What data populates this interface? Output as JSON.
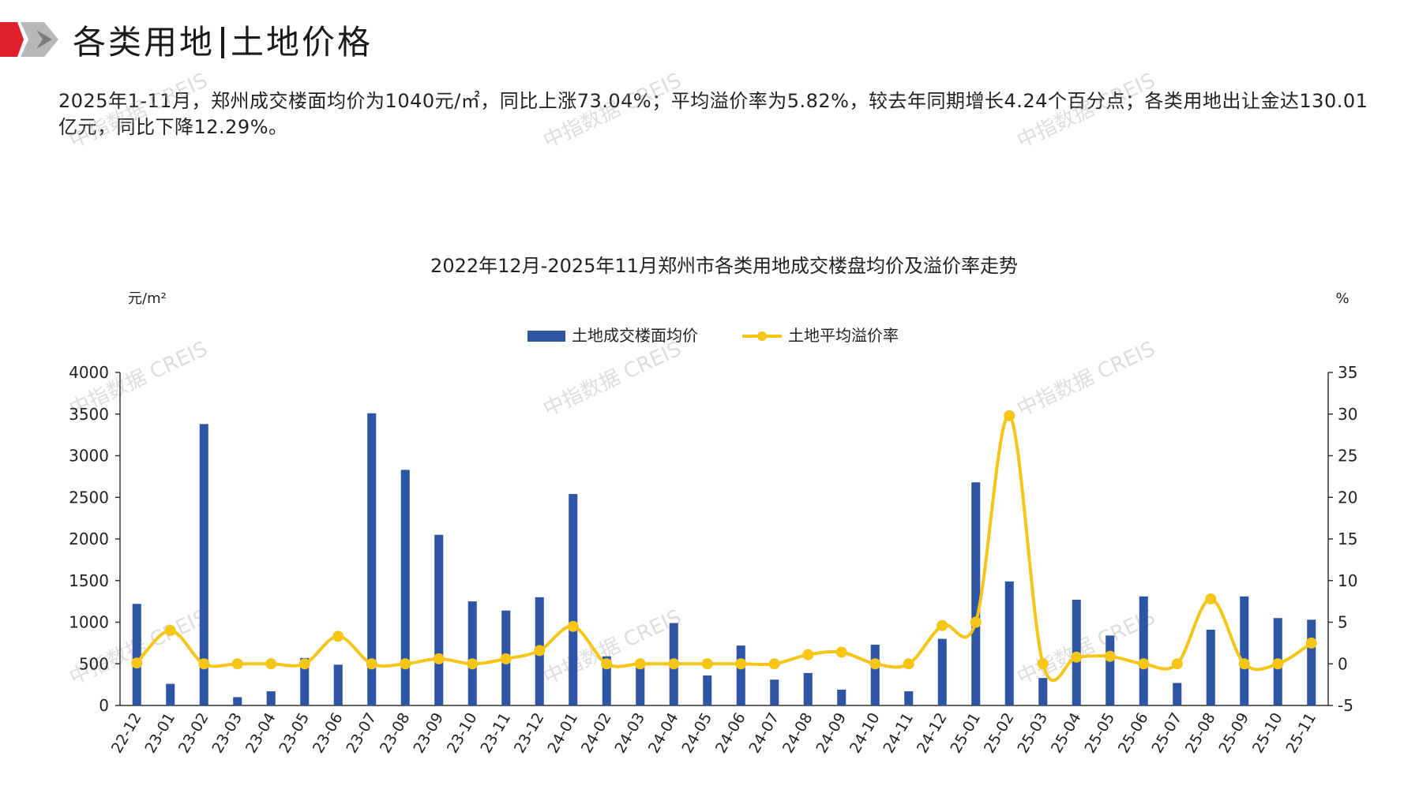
{
  "header": {
    "title_left": "各类用地",
    "title_right": "土地价格"
  },
  "summary": "2025年1-11月，郑州成交楼面均价为1040元/㎡，同比上涨73.04%；平均溢价率为5.82%，较去年同期增长4.24个百分点；各类用地出让金达130.01亿元，同比下降12.29%。",
  "watermark": "中指数据 CREIS",
  "colors": {
    "bar": "#2E54A4",
    "line": "#F5C518",
    "brand_red": "#E0202A",
    "logo_gray": "#9A9A9A"
  },
  "chart_data": {
    "type": "bar",
    "title": "2022年12月-2025年11月郑州市各类用地成交楼盘均价及溢价率走势",
    "y_left_unit": "元/m²",
    "y_right_unit": "%",
    "y_left_range": [
      0,
      4000
    ],
    "y_left_ticks": [
      0,
      500,
      1000,
      1500,
      2000,
      2500,
      3000,
      3500,
      4000
    ],
    "y_right_range": [
      -5,
      35
    ],
    "y_right_ticks": [
      -5,
      0,
      5,
      10,
      15,
      20,
      25,
      30,
      35
    ],
    "legend_position": "top-center",
    "categories": [
      "22-12",
      "23-01",
      "23-02",
      "23-03",
      "23-04",
      "23-05",
      "23-06",
      "23-07",
      "23-08",
      "23-09",
      "23-10",
      "23-11",
      "23-12",
      "24-01",
      "24-02",
      "24-03",
      "24-04",
      "24-05",
      "24-06",
      "24-07",
      "24-08",
      "24-09",
      "24-10",
      "24-11",
      "24-12",
      "25-01",
      "25-02",
      "25-03",
      "25-04",
      "25-05",
      "25-06",
      "25-07",
      "25-08",
      "25-09",
      "25-10",
      "25-11"
    ],
    "series": [
      {
        "name": "土地成交楼面均价",
        "type": "bar",
        "axis": "left",
        "values": [
          1220,
          260,
          3380,
          100,
          170,
          570,
          490,
          3510,
          2830,
          2050,
          1250,
          1140,
          1300,
          2540,
          590,
          470,
          990,
          360,
          720,
          310,
          390,
          190,
          730,
          170,
          800,
          2680,
          1490,
          330,
          1270,
          840,
          1310,
          270,
          910,
          1310,
          1050,
          1030
        ]
      },
      {
        "name": "土地平均溢价率",
        "type": "line",
        "axis": "right",
        "values": [
          0.1,
          4.0,
          0.0,
          0.0,
          0.0,
          0.0,
          3.3,
          0.0,
          0.0,
          0.6,
          0.0,
          0.6,
          1.6,
          4.5,
          0.0,
          0.0,
          0.0,
          0.0,
          0.0,
          0.0,
          1.1,
          1.4,
          0.0,
          0.0,
          4.6,
          5.0,
          29.8,
          0.0,
          0.8,
          0.9,
          0.0,
          0.0,
          7.8,
          0.0,
          0.0,
          2.5
        ]
      }
    ]
  }
}
